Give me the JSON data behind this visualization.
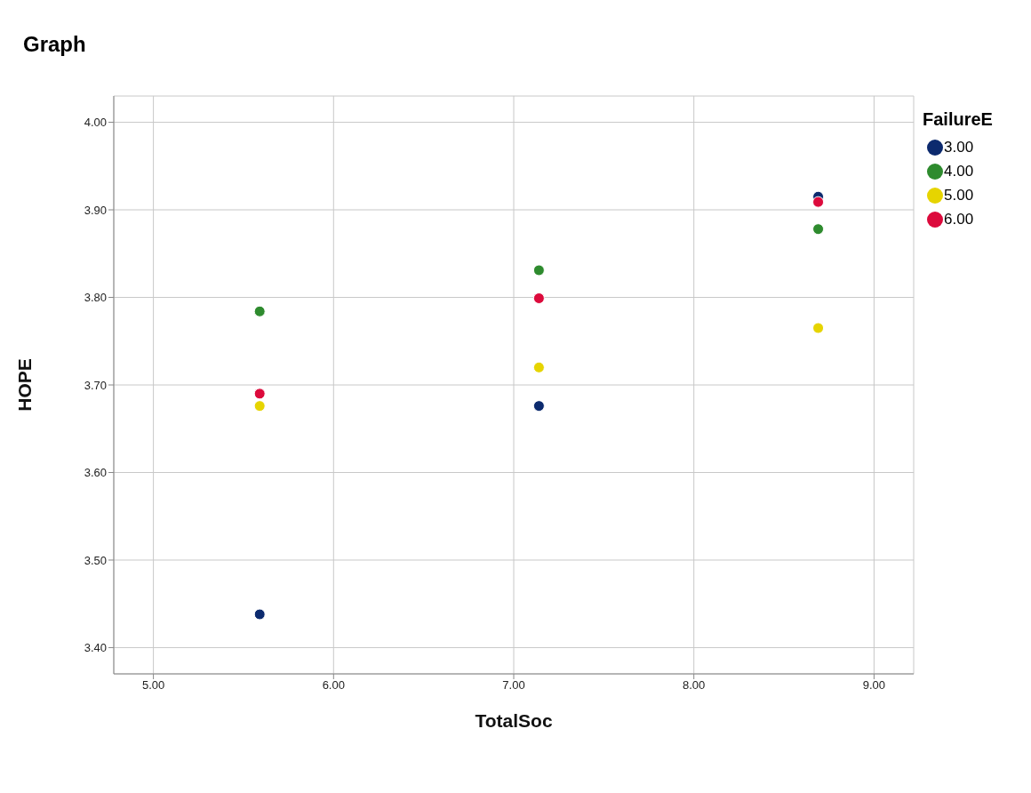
{
  "chart_data": {
    "type": "scatter",
    "title": "Graph",
    "xlabel": "TotalSoc",
    "ylabel": "HOPE",
    "legend_title": "FailureE",
    "xlim": [
      4.78,
      9.22
    ],
    "xticks": [
      {
        "value": 5,
        "label": "5.00"
      },
      {
        "value": 6,
        "label": "6.00"
      },
      {
        "value": 7,
        "label": "7.00"
      },
      {
        "value": 8,
        "label": "8.00"
      },
      {
        "value": 9,
        "label": "9.00"
      }
    ],
    "ylim": [
      3.37,
      4.03
    ],
    "yticks": [
      {
        "value": 3.4,
        "label": "3.40"
      },
      {
        "value": 3.5,
        "label": "3.50"
      },
      {
        "value": 3.6,
        "label": "3.60"
      },
      {
        "value": 3.7,
        "label": "3.70"
      },
      {
        "value": 3.8,
        "label": "3.80"
      },
      {
        "value": 3.9,
        "label": "3.90"
      },
      {
        "value": 4,
        "label": "4.00"
      }
    ],
    "grid": true,
    "legend": "top right",
    "marker": "circle",
    "series": [
      {
        "name": "3.00",
        "color": "#0c2a6e",
        "x": [
          5.59,
          7.14,
          8.69
        ],
        "values": [
          3.438,
          3.676,
          3.915
        ]
      },
      {
        "name": "4.00",
        "color": "#2e8b2e",
        "x": [
          5.59,
          7.14,
          8.69
        ],
        "values": [
          3.784,
          3.831,
          3.878
        ]
      },
      {
        "name": "5.00",
        "color": "#e6d400",
        "x": [
          5.59,
          7.14,
          8.69
        ],
        "values": [
          3.676,
          3.72,
          3.765
        ]
      },
      {
        "name": "6.00",
        "color": "#dc0a3c",
        "x": [
          5.59,
          7.14,
          8.69
        ],
        "values": [
          3.69,
          3.799,
          3.909
        ]
      }
    ]
  }
}
